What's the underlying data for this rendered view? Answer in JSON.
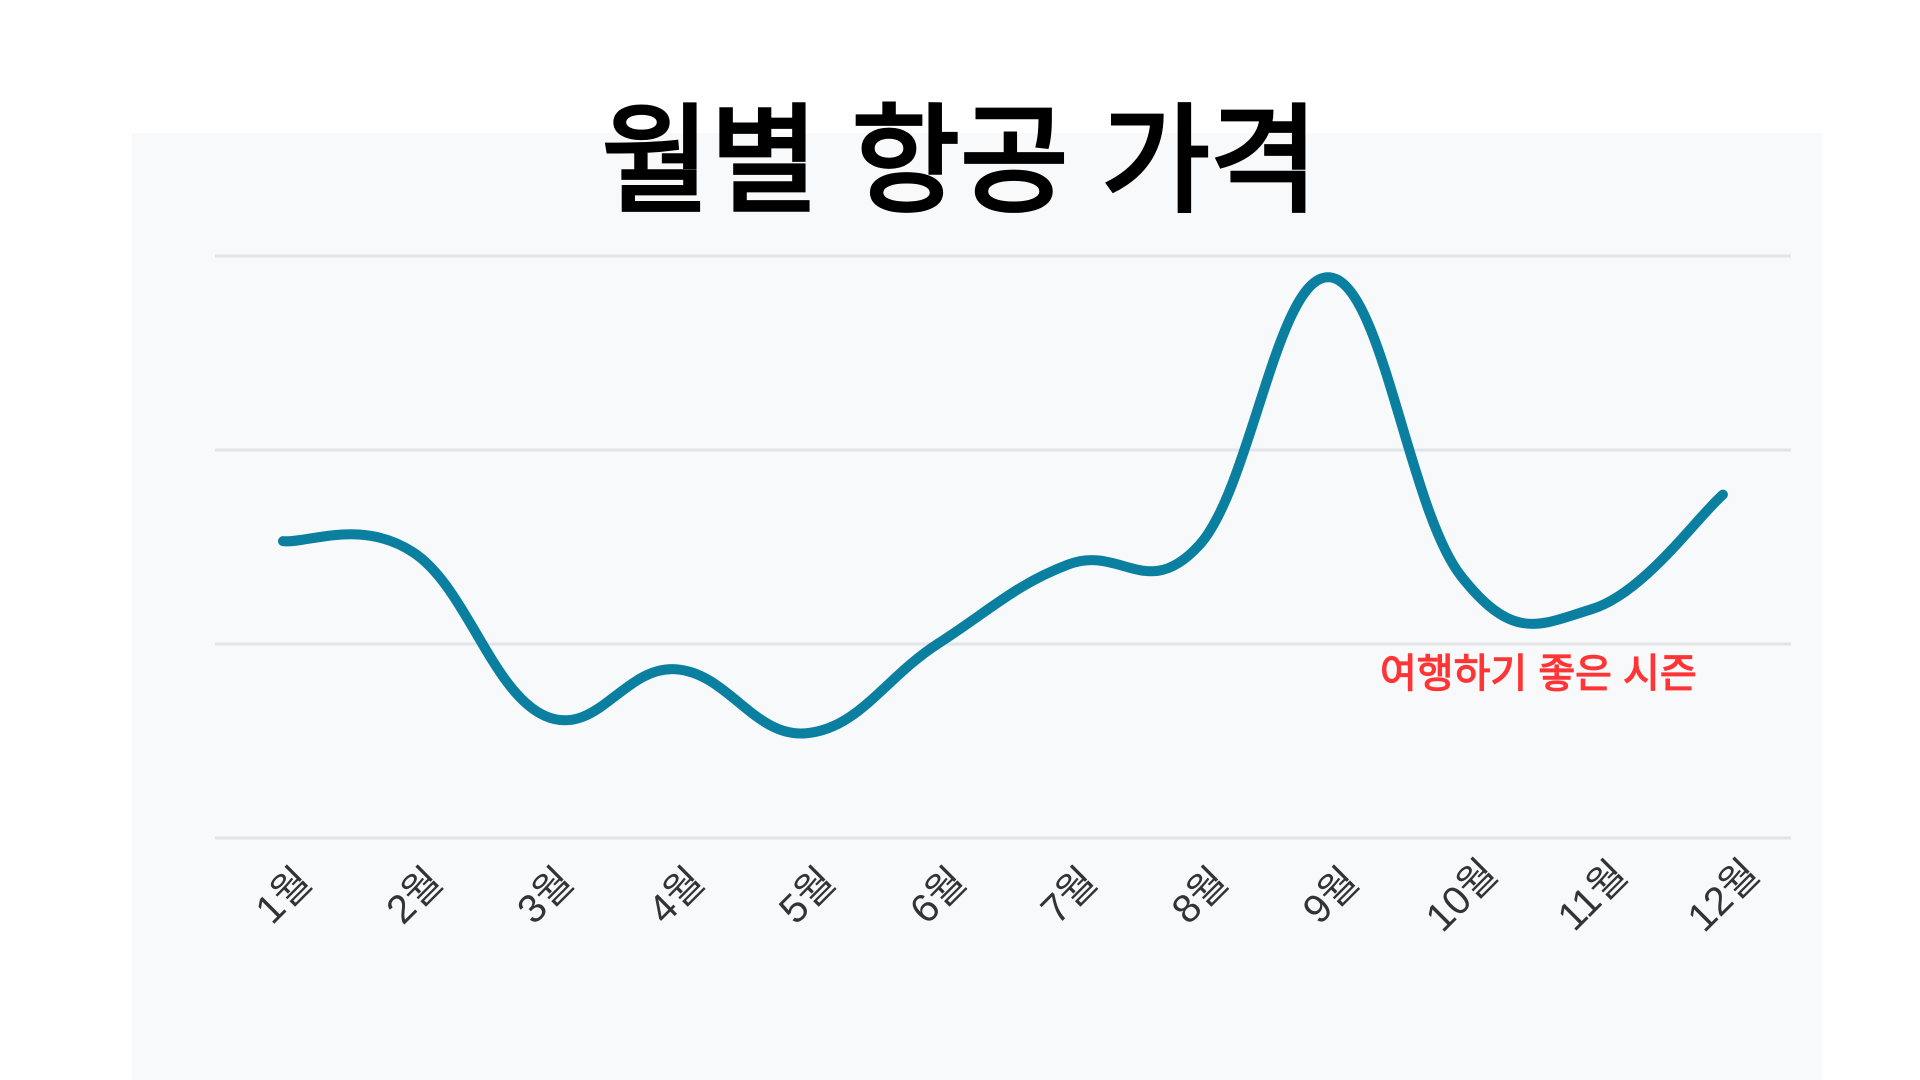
{
  "chart_data": {
    "type": "line",
    "title": "월별 항공 가격",
    "xlabel": "",
    "ylabel": "",
    "categories": [
      "1월",
      "2월",
      "3월",
      "4월",
      "5월",
      "6월",
      "7월",
      "8월",
      "9월",
      "10월",
      "11월",
      "12월"
    ],
    "series": [
      {
        "name": "항공 가격",
        "values": [
          153,
          147,
          63,
          87,
          54,
          100,
          141,
          151,
          289,
          135,
          118,
          177
        ]
      }
    ],
    "ylim": [
      0,
      300
    ],
    "gridlines": [
      0,
      100,
      200,
      300
    ],
    "grid": true,
    "annotation": {
      "text": "여행하기 좋은 시즌",
      "near_category": "11월",
      "color": "#ff3434"
    },
    "line_color": "#0a7fa0"
  }
}
